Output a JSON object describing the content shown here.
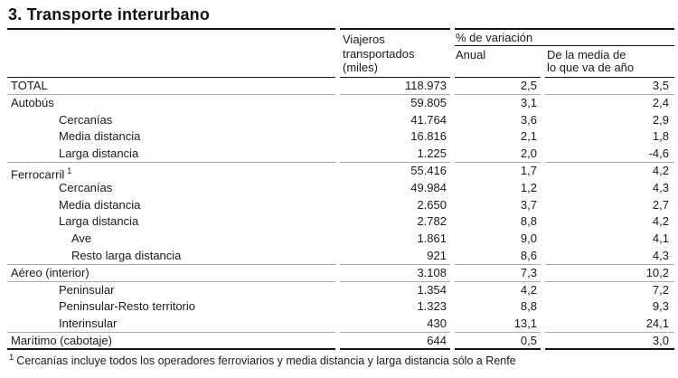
{
  "title": "3. Transporte interurbano",
  "header": {
    "viajeros": {
      "l1": "Viajeros",
      "l2": "transportados",
      "l3": "(miles)"
    },
    "pct_variacion": "% de variación",
    "anual": "Anual",
    "media": {
      "l1": "De la media de",
      "l2": "lo que va de año"
    }
  },
  "rows": [
    {
      "label": "TOTAL",
      "viajeros": "118.973",
      "anual": "2,5",
      "media": "3,5"
    },
    {
      "label": "Autobús",
      "viajeros": "59.805",
      "anual": "3,1",
      "media": "2,4"
    },
    {
      "label": "Cercanías",
      "viajeros": "41.764",
      "anual": "3,6",
      "media": "2,9"
    },
    {
      "label": "Media distancia",
      "viajeros": "16.816",
      "anual": "2,1",
      "media": "1,8"
    },
    {
      "label": "Larga distancia",
      "viajeros": "1.225",
      "anual": "2,0",
      "media": "-4,6"
    },
    {
      "label": "Ferrocarril",
      "sup": "1",
      "viajeros": "55.416",
      "anual": "1,7",
      "media": "4,2"
    },
    {
      "label": "Cercanías",
      "viajeros": "49.984",
      "anual": "1,2",
      "media": "4,3"
    },
    {
      "label": "Media distancia",
      "viajeros": "2.650",
      "anual": "3,7",
      "media": "2,7"
    },
    {
      "label": "Larga distancia",
      "viajeros": "2.782",
      "anual": "8,8",
      "media": "4,2"
    },
    {
      "label": "Ave",
      "viajeros": "1.861",
      "anual": "9,0",
      "media": "4,1"
    },
    {
      "label": "Resto larga distancia",
      "viajeros": "921",
      "anual": "8,6",
      "media": "4,3"
    },
    {
      "label": "Aéreo (interior)",
      "viajeros": "3.108",
      "anual": "7,3",
      "media": "10,2"
    },
    {
      "label": "Peninsular",
      "viajeros": "1.354",
      "anual": "4,2",
      "media": "7,2"
    },
    {
      "label": "Peninsular-Resto territorio",
      "viajeros": "1.323",
      "anual": "8,8",
      "media": "9,3"
    },
    {
      "label": "Interinsular",
      "viajeros": "430",
      "anual": "13,1",
      "media": "24,1"
    },
    {
      "label": "Marítimo (cabotaje)",
      "viajeros": "644",
      "anual": "0,5",
      "media": "3,0"
    }
  ],
  "footnote": {
    "sup": "1",
    "text": "Cercanías incluye todos los operadores ferroviarios y media distancia y larga distancia sólo a Renfe"
  },
  "colors": {
    "text": "#1a1a1a",
    "rule_dark": "#141414",
    "rule_gray": "#acacac",
    "background": "#ffffff"
  }
}
